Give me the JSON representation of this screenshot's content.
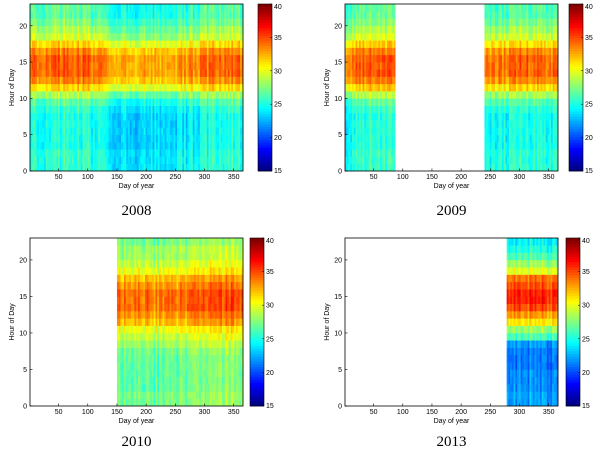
{
  "chart_data": [
    {
      "type": "heatmap",
      "title": "2008",
      "xlabel": "Day of year",
      "ylabel": "Hour of Day",
      "xlim": [
        1,
        366
      ],
      "ylim": [
        0,
        23
      ],
      "xticks": [
        50,
        100,
        150,
        200,
        250,
        300,
        350
      ],
      "yticks": [
        0,
        5,
        10,
        15,
        20
      ],
      "data_days": [
        1,
        366
      ],
      "colorbar": {
        "min": 15,
        "max": 40,
        "ticks": [
          15,
          20,
          25,
          30,
          35,
          40
        ],
        "colormap": "jet"
      },
      "hourly_profile": [
        25,
        25,
        25,
        24.5,
        24.5,
        24.5,
        24.5,
        24.5,
        25,
        26,
        28,
        31,
        33,
        34,
        34,
        34,
        33,
        31,
        29,
        28,
        27,
        26,
        26,
        25
      ],
      "seasonal_offset": [
        {
          "day": 1,
          "delta": 0
        },
        {
          "day": 80,
          "delta": 1
        },
        {
          "day": 180,
          "delta": -1.5
        },
        {
          "day": 280,
          "delta": -0.5
        },
        {
          "day": 340,
          "delta": 1
        },
        {
          "day": 366,
          "delta": 0
        }
      ]
    },
    {
      "type": "heatmap",
      "title": "2009",
      "xlabel": "Day of year",
      "ylabel": "Hour of Day",
      "xlim": [
        1,
        366
      ],
      "ylim": [
        0,
        23
      ],
      "xticks": [
        50,
        100,
        150,
        200,
        250,
        300,
        350
      ],
      "yticks": [
        0,
        5,
        10,
        15,
        20
      ],
      "data_days": [
        1,
        87
      ],
      "data_days_2": [
        240,
        366
      ],
      "colorbar": {
        "min": 15,
        "max": 40,
        "ticks": [
          15,
          20,
          25,
          30,
          35,
          40
        ],
        "colormap": "jet"
      },
      "hourly_profile": [
        25,
        25,
        25,
        24.5,
        24.5,
        24.5,
        24.5,
        24.5,
        25,
        26,
        28,
        31,
        33,
        34,
        34,
        34,
        33,
        31,
        29,
        28,
        27,
        26,
        26,
        25
      ],
      "seasonal_offset": [
        {
          "day": 1,
          "delta": 0
        },
        {
          "day": 55,
          "delta": 1.5
        },
        {
          "day": 87,
          "delta": 0
        },
        {
          "day": 240,
          "delta": 0
        },
        {
          "day": 300,
          "delta": 0.5
        },
        {
          "day": 366,
          "delta": 0
        }
      ]
    },
    {
      "type": "heatmap",
      "title": "2010",
      "xlabel": "Day of year",
      "ylabel": "Hour of Day",
      "xlim": [
        1,
        366
      ],
      "ylim": [
        0,
        23
      ],
      "xticks": [
        50,
        100,
        150,
        200,
        250,
        300,
        350
      ],
      "yticks": [
        0,
        5,
        10,
        15,
        20
      ],
      "data_days": [
        150,
        366
      ],
      "colorbar": {
        "min": 15,
        "max": 40,
        "ticks": [
          15,
          20,
          25,
          30,
          35,
          40
        ],
        "colormap": "jet"
      },
      "hourly_profile": [
        27,
        27,
        26.5,
        26.5,
        26.5,
        26.5,
        26.5,
        27,
        28,
        29,
        30,
        32,
        33,
        34,
        34,
        34,
        33,
        32,
        30,
        29,
        28,
        28,
        27,
        27
      ],
      "seasonal_offset": [
        {
          "day": 150,
          "delta": 0
        },
        {
          "day": 250,
          "delta": 0
        },
        {
          "day": 320,
          "delta": 1.5
        },
        {
          "day": 366,
          "delta": 1
        }
      ]
    },
    {
      "type": "heatmap",
      "title": "2013",
      "xlabel": "Day of year",
      "ylabel": "Hour of Day",
      "xlim": [
        1,
        366
      ],
      "ylim": [
        0,
        23
      ],
      "xticks": [
        50,
        100,
        150,
        200,
        250,
        300,
        350
      ],
      "yticks": [
        0,
        5,
        10,
        15,
        20
      ],
      "data_days": [
        278,
        366
      ],
      "colorbar": {
        "min": 15,
        "max": 40,
        "ticks": [
          15,
          20,
          25,
          30,
          35,
          40
        ],
        "colormap": "jet"
      },
      "hourly_profile": [
        22,
        22,
        21.5,
        21.5,
        21.5,
        21,
        21,
        21,
        22,
        26,
        28,
        31,
        33,
        35,
        36,
        36,
        35,
        34,
        30,
        28,
        26,
        25,
        24,
        23
      ],
      "seasonal_offset": [
        {
          "day": 278,
          "delta": 0
        },
        {
          "day": 330,
          "delta": 0
        },
        {
          "day": 366,
          "delta": -0.5
        }
      ]
    }
  ]
}
